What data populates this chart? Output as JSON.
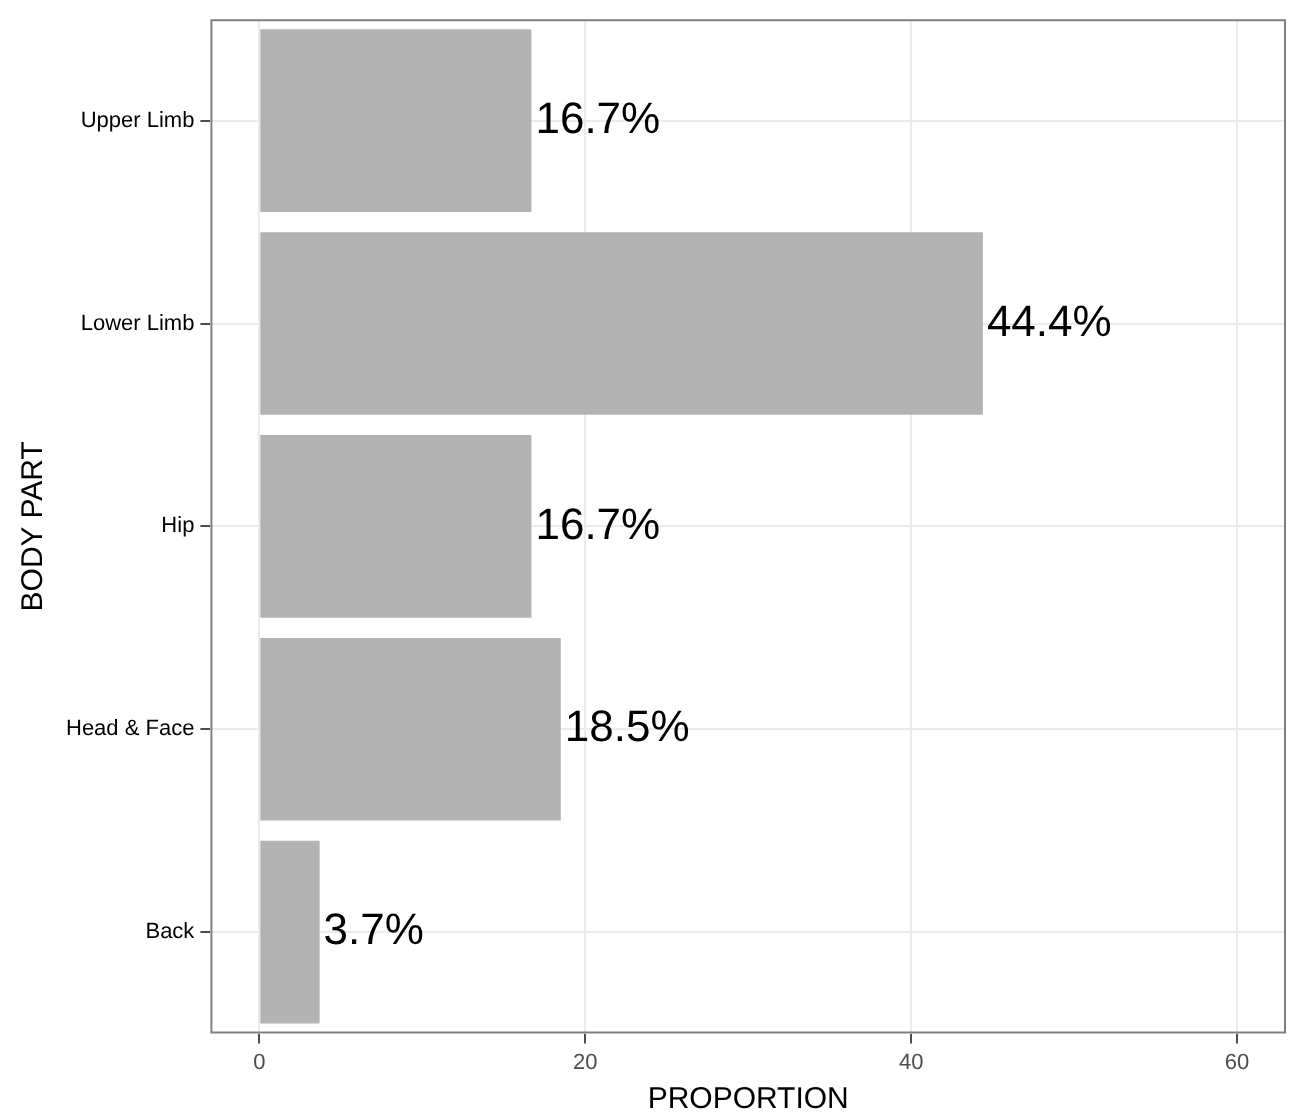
{
  "chart_data": {
    "type": "bar",
    "orientation": "horizontal",
    "xlabel": "PROPORTION",
    "ylabel": "BODY PART",
    "categories": [
      "Upper Limb",
      "Lower Limb",
      "Hip",
      "Head & Face",
      "Back"
    ],
    "values": [
      16.7,
      44.4,
      16.7,
      18.5,
      3.7
    ],
    "value_labels": [
      "16.7%",
      "44.4%",
      "16.7%",
      "18.5%",
      "3.7%"
    ],
    "color": "#b3b3b3",
    "xlim": [
      -3,
      63
    ],
    "xticks": [
      0,
      20,
      40,
      60
    ],
    "grid": true,
    "legend": false
  }
}
